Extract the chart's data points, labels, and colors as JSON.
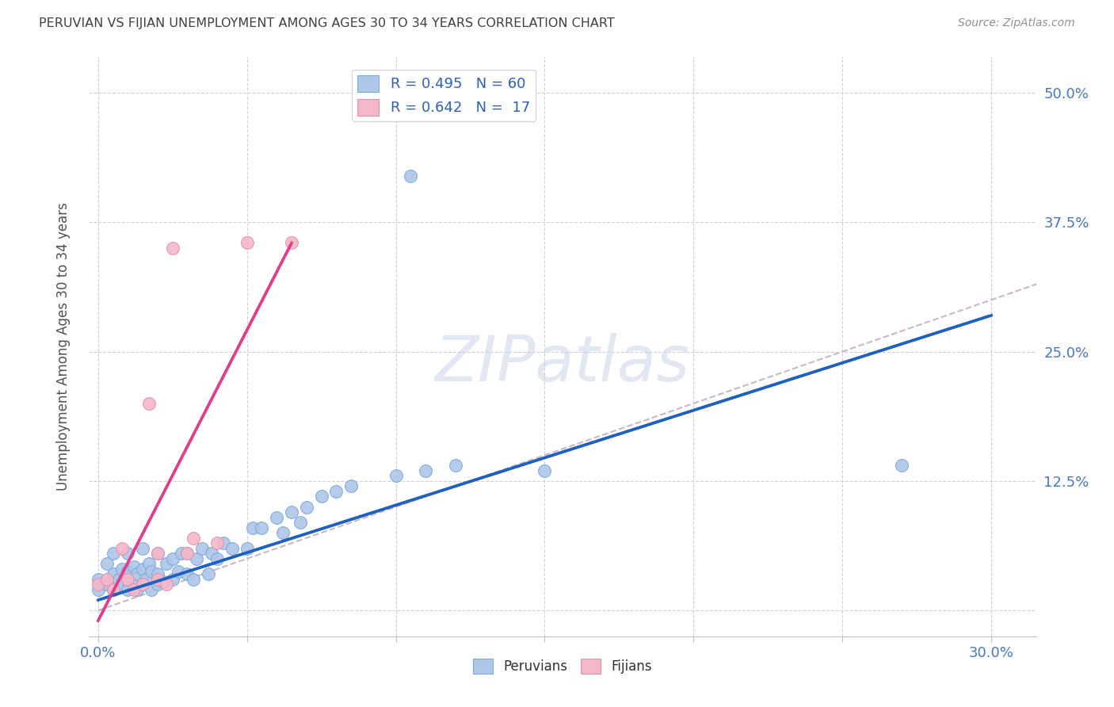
{
  "title": "PERUVIAN VS FIJIAN UNEMPLOYMENT AMONG AGES 30 TO 34 YEARS CORRELATION CHART",
  "source": "Source: ZipAtlas.com",
  "xlabel_ticks": [
    0.0,
    0.05,
    0.1,
    0.15,
    0.2,
    0.25,
    0.3
  ],
  "ylabel_ticks": [
    0.0,
    0.125,
    0.25,
    0.375,
    0.5
  ],
  "xlim": [
    -0.003,
    0.315
  ],
  "ylim": [
    -0.025,
    0.535
  ],
  "peruvian_R": 0.495,
  "peruvian_N": 60,
  "fijian_R": 0.642,
  "fijian_N": 17,
  "peruvian_color": "#aec6e8",
  "fijian_color": "#f5b8c8",
  "peruvian_line_color": "#2060c0",
  "fijian_line_color": "#e0408a",
  "diagonal_color": "#c8b8c8",
  "watermark": "ZIPatlas",
  "peruvian_x": [
    0.0,
    0.0,
    0.003,
    0.003,
    0.005,
    0.005,
    0.005,
    0.007,
    0.008,
    0.008,
    0.01,
    0.01,
    0.01,
    0.012,
    0.012,
    0.013,
    0.013,
    0.015,
    0.015,
    0.015,
    0.016,
    0.017,
    0.018,
    0.018,
    0.02,
    0.02,
    0.02,
    0.022,
    0.023,
    0.025,
    0.025,
    0.027,
    0.028,
    0.03,
    0.03,
    0.032,
    0.033,
    0.035,
    0.037,
    0.038,
    0.04,
    0.042,
    0.045,
    0.05,
    0.052,
    0.055,
    0.06,
    0.062,
    0.065,
    0.068,
    0.07,
    0.075,
    0.08,
    0.085,
    0.1,
    0.11,
    0.12,
    0.15,
    0.27,
    0.105
  ],
  "peruvian_y": [
    0.02,
    0.03,
    0.025,
    0.045,
    0.02,
    0.035,
    0.055,
    0.03,
    0.025,
    0.04,
    0.02,
    0.038,
    0.055,
    0.025,
    0.042,
    0.02,
    0.035,
    0.025,
    0.04,
    0.06,
    0.03,
    0.045,
    0.02,
    0.038,
    0.025,
    0.035,
    0.055,
    0.028,
    0.045,
    0.03,
    0.05,
    0.038,
    0.055,
    0.035,
    0.055,
    0.03,
    0.05,
    0.06,
    0.035,
    0.055,
    0.05,
    0.065,
    0.06,
    0.06,
    0.08,
    0.08,
    0.09,
    0.075,
    0.095,
    0.085,
    0.1,
    0.11,
    0.115,
    0.12,
    0.13,
    0.135,
    0.14,
    0.135,
    0.14,
    0.42
  ],
  "fijian_x": [
    0.0,
    0.003,
    0.005,
    0.008,
    0.01,
    0.012,
    0.015,
    0.017,
    0.02,
    0.02,
    0.023,
    0.025,
    0.03,
    0.032,
    0.04,
    0.05,
    0.065
  ],
  "fijian_y": [
    0.025,
    0.03,
    0.02,
    0.06,
    0.03,
    0.02,
    0.025,
    0.2,
    0.03,
    0.055,
    0.025,
    0.35,
    0.055,
    0.07,
    0.065,
    0.355,
    0.355
  ],
  "peru_line_x0": 0.0,
  "peru_line_y0": 0.01,
  "peru_line_x1": 0.3,
  "peru_line_y1": 0.285,
  "fiji_line_x0": 0.0,
  "fiji_line_y0": -0.01,
  "fiji_line_x1": 0.065,
  "fiji_line_y1": 0.355
}
